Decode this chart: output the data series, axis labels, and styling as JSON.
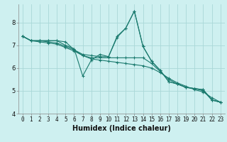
{
  "xlabel": "Humidex (Indice chaleur)",
  "background_color": "#cef0f0",
  "grid_color": "#aad8d8",
  "line_color": "#1a7a6e",
  "xlim": [
    -0.5,
    23.5
  ],
  "ylim": [
    4.0,
    8.8
  ],
  "yticks": [
    4,
    5,
    6,
    7,
    8
  ],
  "xticks": [
    0,
    1,
    2,
    3,
    4,
    5,
    6,
    7,
    8,
    9,
    10,
    11,
    12,
    13,
    14,
    15,
    16,
    17,
    18,
    19,
    20,
    21,
    22,
    23
  ],
  "series": [
    [
      7.4,
      7.2,
      7.2,
      7.2,
      7.2,
      7.15,
      6.8,
      6.6,
      6.55,
      6.5,
      6.5,
      7.4,
      7.75,
      8.5,
      6.95,
      6.3,
      5.9,
      5.4,
      5.3,
      5.15,
      5.1,
      5.05,
      4.6,
      4.5
    ],
    [
      7.4,
      7.2,
      7.2,
      7.2,
      7.2,
      7.0,
      6.85,
      5.65,
      6.35,
      6.6,
      6.5,
      7.35,
      7.75,
      8.5,
      6.95,
      6.3,
      5.9,
      5.4,
      5.3,
      5.15,
      5.1,
      5.05,
      4.6,
      4.5
    ],
    [
      7.4,
      7.2,
      7.2,
      7.15,
      7.1,
      6.95,
      6.8,
      6.55,
      6.45,
      6.45,
      6.45,
      6.45,
      6.45,
      6.45,
      6.45,
      6.2,
      5.85,
      5.5,
      5.3,
      5.15,
      5.1,
      5.0,
      4.6,
      4.5
    ],
    [
      7.4,
      7.2,
      7.15,
      7.1,
      7.05,
      6.9,
      6.75,
      6.55,
      6.4,
      6.35,
      6.3,
      6.25,
      6.2,
      6.15,
      6.1,
      6.0,
      5.8,
      5.55,
      5.35,
      5.2,
      5.05,
      4.95,
      4.7,
      4.5
    ]
  ],
  "tick_fontsize": 5.5,
  "xlabel_fontsize": 7.0
}
